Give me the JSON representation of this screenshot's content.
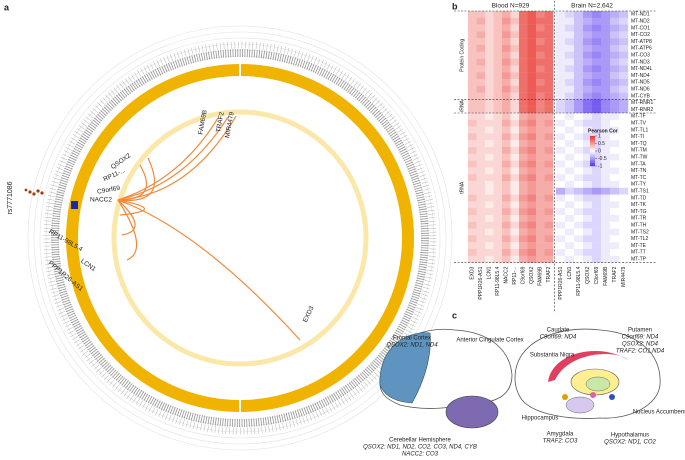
{
  "panel_a": {
    "letter": "a",
    "snp": "rs7771086",
    "genes": [
      {
        "label": "FAM69B",
        "color": "#f08a3c"
      },
      {
        "label": "TRAF2",
        "color": "#f08a3c"
      },
      {
        "label": "MIR4479",
        "color": "#f08a3c"
      },
      {
        "label": "QSOX2",
        "color": "#f08a3c"
      },
      {
        "label": "RP11-...",
        "color": "#f08a3c"
      },
      {
        "label": "C9orf69",
        "color": "#f08a3c"
      },
      {
        "label": "NACC2",
        "color": "#c0282a"
      },
      {
        "label": "RP11-98L5.4",
        "color": "#f08a3c"
      },
      {
        "label": "LCN1",
        "color": "#f08a3c"
      },
      {
        "label": "PPP1R26-AS1",
        "color": "#3caa3c"
      },
      {
        "label": "EXD3",
        "color": "#f08a3c"
      }
    ]
  },
  "panel_b": {
    "letter": "b",
    "blood_label": "Blood N=929",
    "brain_label": "Brain N=2,642",
    "groups": [
      {
        "label": "Protein Coding",
        "size": 13
      },
      {
        "label": "rRNA",
        "size": 2
      },
      {
        "label": "tRNA",
        "size": 22
      }
    ],
    "rows": [
      "MT-ND1",
      "MT-ND2",
      "MT-CO1",
      "MT-CO2",
      "MT-ATP8",
      "MT-ATP6",
      "MT-CO3",
      "MT-ND3",
      "MT-ND4L",
      "MT-ND4",
      "MT-ND5",
      "MT-ND6",
      "MT-CYB",
      "MT-RNR1",
      "MT-RNR2",
      "MT-TF",
      "MT-TV",
      "MT-TL1",
      "MT-TI",
      "MT-TQ",
      "MT-TM",
      "MT-TW",
      "MT-TA",
      "MT-TN",
      "MT-TC",
      "MT-TY",
      "MT-TS1",
      "MT-TD",
      "MT-TK",
      "MT-TG",
      "MT-TR",
      "MT-TH",
      "MT-TS2",
      "MT-TL2",
      "MT-TE",
      "MT-TT",
      "MT-TP"
    ],
    "blood_columns": [
      "EXD3",
      "PPP1R26-AS1",
      "LCN1",
      "RP11-98L5.4",
      "NACC2",
      "RP11-...",
      "C9orf69",
      "QSOX2",
      "FAM69B",
      "TRAF2"
    ],
    "brain_columns": [
      "PPP1R26-AS1",
      "LCN1",
      "RP11-98L5.4",
      "QSOX2",
      "C9orf69",
      "FAM69B",
      "TRAF2",
      "MIR4479"
    ],
    "values": [
      [
        0.3,
        0.3,
        0.2,
        0.3,
        0.4,
        0.2,
        0.7,
        0.8,
        0.6,
        0.7,
        -0.1,
        -0.2,
        -0.3,
        -0.5,
        -0.6,
        -0.5,
        -0.4,
        -0.3
      ],
      [
        0.3,
        0.4,
        0.2,
        0.3,
        0.5,
        0.3,
        0.7,
        0.8,
        0.7,
        0.7,
        -0.1,
        -0.1,
        -0.3,
        -0.4,
        -0.5,
        -0.5,
        -0.3,
        -0.2
      ],
      [
        0.3,
        0.3,
        0.2,
        0.3,
        0.4,
        0.2,
        0.7,
        0.8,
        0.6,
        0.7,
        -0.1,
        -0.2,
        -0.3,
        -0.5,
        -0.6,
        -0.5,
        -0.4,
        -0.3
      ],
      [
        0.3,
        0.4,
        0.2,
        0.3,
        0.5,
        0.3,
        0.7,
        0.8,
        0.7,
        0.7,
        -0.1,
        -0.1,
        -0.3,
        -0.4,
        -0.5,
        -0.5,
        -0.3,
        -0.2
      ],
      [
        0.3,
        0.3,
        0.2,
        0.3,
        0.4,
        0.2,
        0.7,
        0.8,
        0.6,
        0.7,
        -0.1,
        -0.2,
        -0.3,
        -0.5,
        -0.6,
        -0.5,
        -0.4,
        -0.3
      ],
      [
        0.3,
        0.4,
        0.2,
        0.3,
        0.5,
        0.3,
        0.7,
        0.8,
        0.7,
        0.7,
        -0.1,
        -0.1,
        -0.3,
        -0.4,
        -0.5,
        -0.5,
        -0.3,
        -0.2
      ],
      [
        0.3,
        0.3,
        0.2,
        0.3,
        0.4,
        0.2,
        0.7,
        0.8,
        0.6,
        0.7,
        -0.1,
        -0.2,
        -0.3,
        -0.5,
        -0.6,
        -0.5,
        -0.4,
        -0.3
      ],
      [
        0.3,
        0.4,
        0.2,
        0.3,
        0.5,
        0.3,
        0.7,
        0.8,
        0.7,
        0.7,
        -0.1,
        -0.1,
        -0.3,
        -0.4,
        -0.5,
        -0.5,
        -0.3,
        -0.2
      ],
      [
        0.3,
        0.3,
        0.2,
        0.3,
        0.4,
        0.2,
        0.7,
        0.8,
        0.6,
        0.7,
        -0.1,
        -0.2,
        -0.3,
        -0.5,
        -0.6,
        -0.5,
        -0.4,
        -0.3
      ],
      [
        0.3,
        0.4,
        0.2,
        0.3,
        0.5,
        0.3,
        0.7,
        0.8,
        0.7,
        0.7,
        -0.1,
        -0.1,
        -0.3,
        -0.4,
        -0.5,
        -0.5,
        -0.3,
        -0.2
      ],
      [
        0.3,
        0.3,
        0.2,
        0.3,
        0.4,
        0.2,
        0.7,
        0.8,
        0.6,
        0.7,
        -0.1,
        -0.2,
        -0.3,
        -0.5,
        -0.6,
        -0.5,
        -0.4,
        -0.3
      ],
      [
        0.3,
        0.4,
        0.2,
        0.3,
        0.5,
        0.3,
        0.7,
        0.8,
        0.7,
        0.7,
        -0.1,
        -0.1,
        -0.3,
        -0.4,
        -0.5,
        -0.5,
        -0.3,
        -0.2
      ],
      [
        0.3,
        0.3,
        0.2,
        0.3,
        0.4,
        0.2,
        0.7,
        0.8,
        0.6,
        0.7,
        -0.1,
        -0.2,
        -0.3,
        -0.5,
        -0.6,
        -0.5,
        -0.4,
        -0.3
      ],
      [
        0.3,
        0.3,
        0.2,
        0.3,
        0.4,
        0.2,
        0.7,
        0.8,
        0.6,
        0.7,
        -0.2,
        -0.3,
        -0.5,
        -0.7,
        -0.8,
        -0.6,
        -0.5,
        -0.4
      ],
      [
        0.3,
        0.3,
        0.2,
        0.3,
        0.4,
        0.2,
        0.7,
        0.8,
        0.6,
        0.7,
        -0.2,
        -0.3,
        -0.5,
        -0.7,
        -0.8,
        -0.6,
        -0.5,
        -0.4
      ],
      [
        0.2,
        0.2,
        0.1,
        0.2,
        0.3,
        0.1,
        0.4,
        0.5,
        0.4,
        0.4,
        0,
        -0.1,
        0,
        -0.1,
        -0.2,
        -0.1,
        -0.1,
        0
      ],
      [
        0.3,
        0.2,
        0.2,
        0.2,
        0.4,
        0.2,
        0.5,
        0.6,
        0.4,
        0.5,
        -0.1,
        0,
        -0.1,
        -0.2,
        -0.2,
        -0.1,
        0,
        0
      ],
      [
        0.2,
        0.2,
        0.1,
        0.2,
        0.3,
        0.1,
        0.4,
        0.5,
        0.4,
        0.4,
        0,
        -0.1,
        0,
        -0.1,
        -0.2,
        -0.1,
        -0.1,
        0
      ],
      [
        0.3,
        0.2,
        0.2,
        0.2,
        0.4,
        0.2,
        0.5,
        0.6,
        0.4,
        0.5,
        -0.1,
        0,
        -0.1,
        -0.2,
        -0.2,
        -0.1,
        0,
        0
      ],
      [
        0.2,
        0.2,
        0.1,
        0.2,
        0.3,
        0.1,
        0.4,
        0.5,
        0.4,
        0.4,
        0,
        -0.1,
        0,
        -0.1,
        -0.2,
        -0.1,
        -0.1,
        0
      ],
      [
        0.3,
        0.2,
        0.2,
        0.2,
        0.4,
        0.2,
        0.5,
        0.6,
        0.4,
        0.5,
        -0.1,
        0,
        -0.1,
        -0.2,
        -0.2,
        -0.1,
        0,
        0
      ],
      [
        0.2,
        0.2,
        0.1,
        0.2,
        0.3,
        0.1,
        0.4,
        0.5,
        0.4,
        0.4,
        0,
        -0.1,
        0,
        -0.1,
        -0.2,
        -0.1,
        -0.1,
        0
      ],
      [
        0.3,
        0.2,
        0.2,
        0.2,
        0.4,
        0.2,
        0.5,
        0.6,
        0.4,
        0.5,
        -0.1,
        0,
        -0.1,
        -0.2,
        -0.2,
        -0.1,
        0,
        0
      ],
      [
        0.2,
        0.2,
        0.1,
        0.2,
        0.3,
        0.1,
        0.4,
        0.5,
        0.4,
        0.4,
        0,
        -0.1,
        0,
        -0.1,
        -0.2,
        -0.1,
        -0.1,
        0
      ],
      [
        0.3,
        0.2,
        0.2,
        0.2,
        0.4,
        0.2,
        0.5,
        0.6,
        0.4,
        0.5,
        -0.1,
        0,
        -0.1,
        -0.2,
        -0.2,
        -0.1,
        0,
        0
      ],
      [
        0.2,
        0.2,
        0.1,
        0.2,
        0.3,
        0.1,
        0.4,
        0.5,
        0.4,
        0.4,
        0,
        -0.1,
        0,
        -0.1,
        -0.2,
        -0.1,
        -0.1,
        0
      ],
      [
        0.2,
        0.2,
        0.1,
        0.2,
        0.3,
        0.1,
        0.4,
        0.5,
        0.4,
        0.4,
        -0.4,
        -0.2,
        -0.3,
        -0.4,
        -0.5,
        -0.4,
        -0.3,
        -0.2
      ],
      [
        0.3,
        0.2,
        0.2,
        0.2,
        0.4,
        0.2,
        0.5,
        0.6,
        0.4,
        0.5,
        -0.1,
        0,
        -0.1,
        -0.2,
        -0.2,
        -0.1,
        0,
        0
      ],
      [
        0.2,
        0.2,
        0.1,
        0.2,
        0.3,
        0.1,
        0.4,
        0.5,
        0.4,
        0.4,
        0,
        -0.1,
        0,
        -0.1,
        -0.2,
        -0.1,
        -0.1,
        0
      ],
      [
        0.3,
        0.2,
        0.2,
        0.2,
        0.4,
        0.2,
        0.5,
        0.6,
        0.4,
        0.5,
        -0.1,
        0,
        -0.1,
        -0.2,
        -0.2,
        -0.1,
        0,
        0
      ],
      [
        0.2,
        0.2,
        0.1,
        0.2,
        0.3,
        0.1,
        0.4,
        0.5,
        0.4,
        0.4,
        0,
        -0.1,
        0,
        -0.1,
        -0.2,
        -0.1,
        -0.1,
        0
      ],
      [
        0.3,
        0.2,
        0.2,
        0.2,
        0.4,
        0.2,
        0.5,
        0.6,
        0.4,
        0.5,
        -0.1,
        0,
        -0.1,
        -0.2,
        -0.2,
        -0.1,
        0,
        0
      ],
      [
        0.2,
        0.2,
        0.1,
        0.2,
        0.3,
        0.1,
        0.4,
        0.5,
        0.4,
        0.4,
        0,
        -0.1,
        0,
        -0.1,
        -0.2,
        -0.1,
        -0.1,
        0
      ],
      [
        0.3,
        0.2,
        0.2,
        0.2,
        0.4,
        0.2,
        0.5,
        0.6,
        0.4,
        0.5,
        -0.1,
        0,
        -0.1,
        -0.2,
        -0.2,
        -0.1,
        0,
        0
      ],
      [
        0.2,
        0.2,
        0.1,
        0.2,
        0.3,
        0.1,
        0.4,
        0.5,
        0.4,
        0.4,
        0,
        -0.1,
        0,
        -0.1,
        -0.2,
        -0.1,
        -0.1,
        0
      ],
      [
        0.3,
        0.2,
        0.2,
        0.2,
        0.4,
        0.2,
        0.5,
        0.6,
        0.4,
        0.5,
        -0.1,
        0,
        -0.1,
        -0.2,
        -0.2,
        -0.1,
        0,
        0
      ],
      [
        0.2,
        0.2,
        0.1,
        0.2,
        0.3,
        0.1,
        0.4,
        0.5,
        0.4,
        0.4,
        0,
        -0.1,
        0,
        -0.1,
        -0.2,
        -0.1,
        -0.1,
        0
      ]
    ],
    "legend": {
      "title": "Pearson Cor",
      "ticks": [
        1,
        0.5,
        0,
        -0.5,
        -1
      ],
      "low_color": "#5533ee",
      "high_color": "#e8322a"
    }
  },
  "panel_c": {
    "letter": "c",
    "labels": [
      {
        "name": "Frontal Cortex",
        "note": "QSOX2: ND1, ND4"
      },
      {
        "name": "Anterior Cingulate Cortex",
        "note": ""
      },
      {
        "name": "Caudate",
        "note": "C9orf69: ND4"
      },
      {
        "name": "Putamen",
        "note": "C9orf69: ND4"
      },
      {
        "name": "Substantia Nigra",
        "note": ""
      },
      {
        "name": "Cerebellar Hemisphere",
        "note": "QSOX2: ND1, ND2, CO2, CO3, ND4, CYB"
      },
      {
        "name": "Hippocampus",
        "note": ""
      },
      {
        "name": "Amygdala",
        "note": "TRAF2: CO3"
      },
      {
        "name": "Hypothalamus",
        "note": "QSOX2: ND1, CO2"
      },
      {
        "name": "Nucleus Accumbens",
        "note": ""
      }
    ],
    "extra_notes": [
      "QSOX2: ND4",
      "TRAF2: CO1,ND4",
      "NACC2: CO3"
    ]
  }
}
